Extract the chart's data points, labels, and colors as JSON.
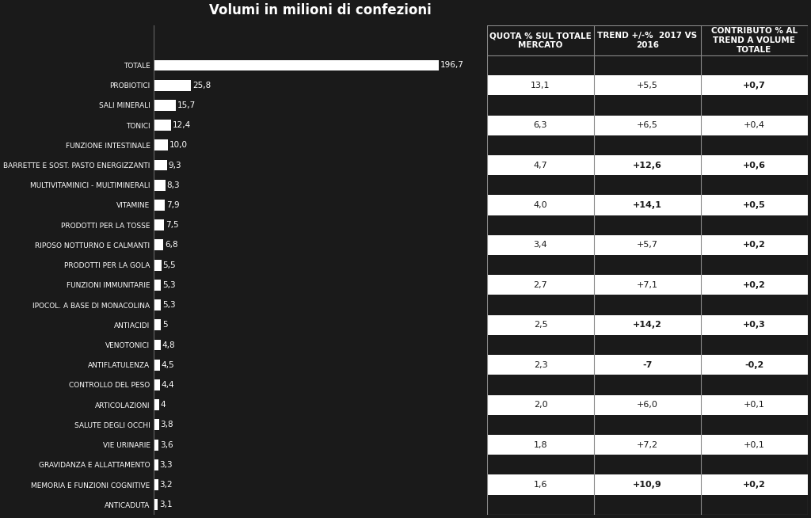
{
  "title": "Volumi in milioni di confezioni",
  "bg_color": "#1a1a1a",
  "bar_color": "#ffffff",
  "text_color": "#ffffff",
  "categories": [
    "TOTALE",
    "PROBIOTICI",
    "SALI MINERALI",
    "TONICI",
    "FUNZIONE INTESTINALE",
    "BARRETTE E SOST. PASTO ENERGIZZANTI",
    "MULTIVITAMINICI - MULTIMINERALI",
    "VITAMINE",
    "PRODOTTI PER LA TOSSE",
    "RIPOSO NOTTURNO E CALMANTI",
    "PRODOTTI PER LA GOLA",
    "FUNZIONI IMMUNITARIE",
    "IPOCOL. A BASE DI MONACOLINA",
    "ANTIACIDI",
    "VENOTONICI",
    "ANTIFLATULENZA",
    "CONTROLLO DEL PESO",
    "ARTICOLAZIONI",
    "SALUTE DEGLI OCCHI",
    "VIE URINARIE",
    "GRAVIDANZA E ALLATTAMENTO",
    "MEMORIA E FUNZIONI COGNITIVE",
    "ANTICADUTA"
  ],
  "values": [
    196.7,
    25.8,
    15.7,
    12.4,
    10.0,
    9.3,
    8.3,
    7.9,
    7.5,
    6.8,
    5.5,
    5.3,
    5.3,
    5.0,
    4.8,
    4.5,
    4.4,
    4.0,
    3.8,
    3.6,
    3.3,
    3.2,
    3.1
  ],
  "value_labels": [
    "196,7",
    "25,8",
    "15,7",
    "12,4",
    "10,0",
    "9,3",
    "8,3",
    "7,9",
    "7,5",
    "6,8",
    "5,5",
    "5,3",
    "5,3",
    "5",
    "4,8",
    "4,5",
    "4,4",
    "4",
    "3,8",
    "3,6",
    "3,3",
    "3,2",
    "3,1"
  ],
  "col_headers": [
    "QUOTA % SUL TOTALE\nMERCATO",
    "TREND +/-%  2017 VS\n2016",
    "CONTRIBUTO % AL\nTREND A VOLUME\nTOTALE"
  ],
  "table_data": [
    {
      "quota": "",
      "trend": "",
      "contrib": "",
      "white": false
    },
    {
      "quota": "13,1",
      "trend": "+5,5",
      "contrib": "+0,7",
      "white": true
    },
    {
      "quota": "",
      "trend": "",
      "contrib": "",
      "white": false
    },
    {
      "quota": "6,3",
      "trend": "+6,5",
      "contrib": "+0,4",
      "white": true
    },
    {
      "quota": "",
      "trend": "",
      "contrib": "",
      "white": false
    },
    {
      "quota": "4,7",
      "trend": "+12,6",
      "contrib": "+0,6",
      "white": true
    },
    {
      "quota": "",
      "trend": "",
      "contrib": "",
      "white": false
    },
    {
      "quota": "4,0",
      "trend": "+14,1",
      "contrib": "+0,5",
      "white": true
    },
    {
      "quota": "",
      "trend": "",
      "contrib": "",
      "white": false
    },
    {
      "quota": "3,4",
      "trend": "+5,7",
      "contrib": "+0,2",
      "white": true
    },
    {
      "quota": "",
      "trend": "",
      "contrib": "",
      "white": false
    },
    {
      "quota": "2,7",
      "trend": "+7,1",
      "contrib": "+0,2",
      "white": true
    },
    {
      "quota": "",
      "trend": "",
      "contrib": "",
      "white": false
    },
    {
      "quota": "2,5",
      "trend": "+14,2",
      "contrib": "+0,3",
      "white": true
    },
    {
      "quota": "",
      "trend": "",
      "contrib": "",
      "white": false
    },
    {
      "quota": "2,3",
      "trend": "-7",
      "contrib": "-0,2",
      "white": true
    },
    {
      "quota": "",
      "trend": "",
      "contrib": "",
      "white": false
    },
    {
      "quota": "2,0",
      "trend": "+6,0",
      "contrib": "+0,1",
      "white": true
    },
    {
      "quota": "",
      "trend": "",
      "contrib": "",
      "white": false
    },
    {
      "quota": "1,8",
      "trend": "+7,2",
      "contrib": "+0,1",
      "white": true
    },
    {
      "quota": "",
      "trend": "",
      "contrib": "",
      "white": false
    },
    {
      "quota": "1,6",
      "trend": "+10,9",
      "contrib": "+0,2",
      "white": true
    },
    {
      "quota": "",
      "trend": "",
      "contrib": "",
      "white": false
    }
  ],
  "bold_trend": [
    "+12,6",
    "+14,1",
    "+14,2",
    "-7",
    "+10,9"
  ],
  "bold_contrib_all": [
    "+0,7",
    "+0,6",
    "+0,5",
    "+0,3",
    "-0,2",
    "+0,2"
  ]
}
